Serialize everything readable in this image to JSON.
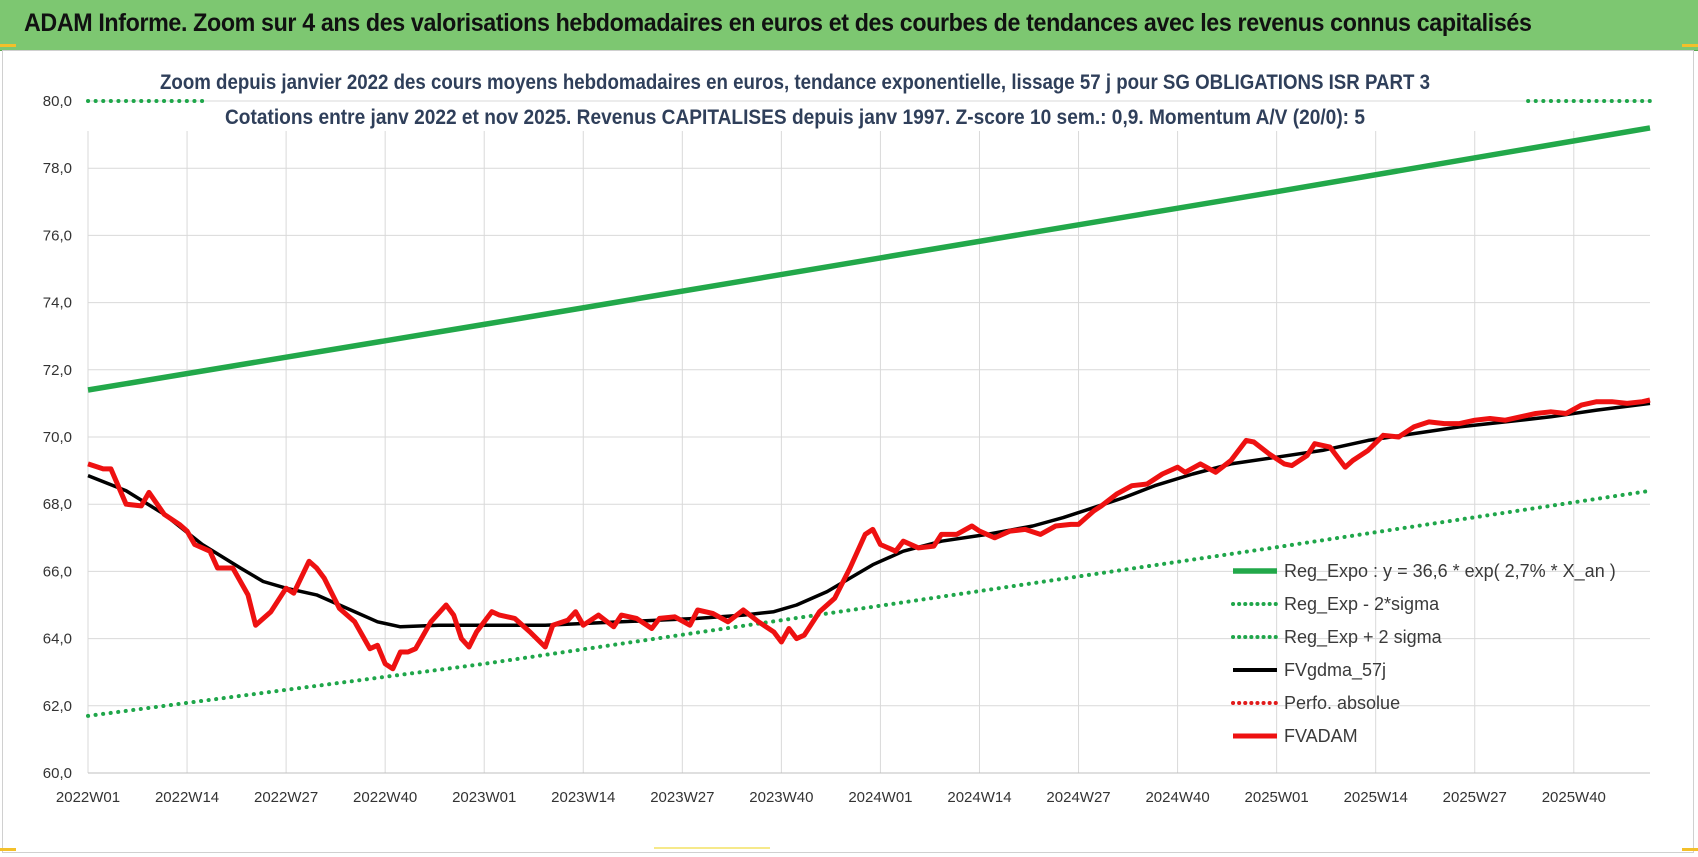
{
  "header": {
    "title": "ADAM Informe. Zoom sur 4 ans des valorisations hebdomadaires en euros et des courbes de tendances avec les revenus connus capitalisés"
  },
  "colors": {
    "trend": "#22a84a",
    "band": "#1fa64a",
    "smooth": "#000000",
    "perfo": "#e11a1a",
    "fvadam": "#ee1111",
    "grid": "#d9d9d9",
    "banner": "#7dc771"
  },
  "chart_data": {
    "type": "line",
    "title_lines": [
      "Zoom depuis janvier 2022 des cours moyens hebdomadaires en euros, tendance exponentielle, lissage 57 j pour SG OBLIGATIONS ISR PART 3",
      "Cotations entre janv 2022 et nov 2025. Revenus CAPITALISES depuis janv 1997. Z-score 10 sem.: 0,9. Momentum A/V (20/0): 5"
    ],
    "ylim": [
      60,
      80
    ],
    "yticks": [
      "60,0",
      "62,0",
      "64,0",
      "66,0",
      "68,0",
      "70,0",
      "72,0",
      "74,0",
      "76,0",
      "78,0",
      "80,0"
    ],
    "xlim": [
      0,
      205
    ],
    "xticks": [
      {
        "x": 0,
        "label": "2022W01"
      },
      {
        "x": 13,
        "label": "2022W14"
      },
      {
        "x": 26,
        "label": "2022W27"
      },
      {
        "x": 39,
        "label": "2022W40"
      },
      {
        "x": 52,
        "label": "2023W01"
      },
      {
        "x": 65,
        "label": "2023W14"
      },
      {
        "x": 78,
        "label": "2023W27"
      },
      {
        "x": 91,
        "label": "2023W40"
      },
      {
        "x": 104,
        "label": "2024W01"
      },
      {
        "x": 117,
        "label": "2024W14"
      },
      {
        "x": 130,
        "label": "2024W27"
      },
      {
        "x": 143,
        "label": "2024W40"
      },
      {
        "x": 156,
        "label": "2025W01"
      },
      {
        "x": 169,
        "label": "2025W14"
      },
      {
        "x": 182,
        "label": "2025W27"
      },
      {
        "x": 195,
        "label": "2025W40"
      }
    ],
    "legend_position": "lower-right",
    "grid": true,
    "series": [
      {
        "name": "Reg_Expo : y = 36,6 * exp( 2,7% *  X_an )",
        "style": "solid-thick",
        "color": "#22a84a",
        "points": [
          [
            0,
            71.4
          ],
          [
            52,
            73.35
          ],
          [
            104,
            75.33
          ],
          [
            156,
            77.3
          ],
          [
            205,
            79.2
          ]
        ]
      },
      {
        "name": "Reg_Exp - 2*sigma",
        "style": "dotted",
        "color": "#1fa64a",
        "points": [
          [
            0,
            61.7
          ],
          [
            52,
            63.25
          ],
          [
            104,
            64.98
          ],
          [
            156,
            66.72
          ],
          [
            205,
            68.4
          ]
        ]
      },
      {
        "name": "Reg_Exp + 2 sigma",
        "style": "dotted",
        "color": "#1fa64a",
        "points": [
          [
            0,
            80.0
          ],
          [
            15,
            80.0
          ]
        ]
      },
      {
        "name": "FVgdma_57j",
        "style": "solid",
        "color": "#000000",
        "points": [
          [
            0,
            68.85
          ],
          [
            5,
            68.4
          ],
          [
            10,
            67.7
          ],
          [
            15,
            66.8
          ],
          [
            20,
            66.1
          ],
          [
            23,
            65.7
          ],
          [
            26,
            65.5
          ],
          [
            30,
            65.3
          ],
          [
            34,
            64.9
          ],
          [
            38,
            64.5
          ],
          [
            41,
            64.35
          ],
          [
            46,
            64.4
          ],
          [
            52,
            64.4
          ],
          [
            60,
            64.4
          ],
          [
            70,
            64.5
          ],
          [
            80,
            64.6
          ],
          [
            86,
            64.7
          ],
          [
            90,
            64.8
          ],
          [
            93,
            65.0
          ],
          [
            97,
            65.4
          ],
          [
            100,
            65.8
          ],
          [
            103,
            66.2
          ],
          [
            107,
            66.6
          ],
          [
            112,
            66.9
          ],
          [
            118,
            67.1
          ],
          [
            124,
            67.35
          ],
          [
            128,
            67.6
          ],
          [
            132,
            67.9
          ],
          [
            136,
            68.2
          ],
          [
            140,
            68.55
          ],
          [
            145,
            68.9
          ],
          [
            150,
            69.2
          ],
          [
            156,
            69.4
          ],
          [
            162,
            69.6
          ],
          [
            168,
            69.9
          ],
          [
            174,
            70.1
          ],
          [
            180,
            70.3
          ],
          [
            186,
            70.45
          ],
          [
            192,
            70.6
          ],
          [
            198,
            70.8
          ],
          [
            205,
            71.0
          ]
        ]
      },
      {
        "name": "Perfo. absolue",
        "style": "dotted",
        "color": "#e11a1a",
        "points": []
      },
      {
        "name": "FVADAM",
        "style": "solid-thick",
        "color": "#ee1111",
        "points": [
          [
            0,
            69.2
          ],
          [
            2,
            69.05
          ],
          [
            3,
            69.05
          ],
          [
            5,
            68.0
          ],
          [
            7,
            67.95
          ],
          [
            8,
            68.35
          ],
          [
            10,
            67.7
          ],
          [
            12,
            67.4
          ],
          [
            13,
            67.2
          ],
          [
            14,
            66.8
          ],
          [
            16,
            66.6
          ],
          [
            17,
            66.1
          ],
          [
            19,
            66.1
          ],
          [
            21,
            65.3
          ],
          [
            22,
            64.4
          ],
          [
            24,
            64.8
          ],
          [
            26,
            65.5
          ],
          [
            27,
            65.35
          ],
          [
            29,
            66.3
          ],
          [
            30,
            66.1
          ],
          [
            31,
            65.8
          ],
          [
            33,
            64.9
          ],
          [
            35,
            64.5
          ],
          [
            37,
            63.7
          ],
          [
            38,
            63.8
          ],
          [
            39,
            63.25
          ],
          [
            40,
            63.1
          ],
          [
            41,
            63.6
          ],
          [
            42,
            63.6
          ],
          [
            43,
            63.7
          ],
          [
            45,
            64.5
          ],
          [
            47,
            65.0
          ],
          [
            48,
            64.7
          ],
          [
            49,
            64.0
          ],
          [
            50,
            63.75
          ],
          [
            51,
            64.2
          ],
          [
            53,
            64.8
          ],
          [
            54,
            64.7
          ],
          [
            56,
            64.6
          ],
          [
            58,
            64.2
          ],
          [
            60,
            63.75
          ],
          [
            61,
            64.4
          ],
          [
            63,
            64.55
          ],
          [
            64,
            64.8
          ],
          [
            65,
            64.4
          ],
          [
            67,
            64.7
          ],
          [
            69,
            64.35
          ],
          [
            70,
            64.7
          ],
          [
            72,
            64.6
          ],
          [
            74,
            64.3
          ],
          [
            75,
            64.6
          ],
          [
            77,
            64.65
          ],
          [
            79,
            64.4
          ],
          [
            80,
            64.85
          ],
          [
            82,
            64.75
          ],
          [
            84,
            64.5
          ],
          [
            86,
            64.85
          ],
          [
            88,
            64.5
          ],
          [
            90,
            64.2
          ],
          [
            91,
            63.9
          ],
          [
            92,
            64.3
          ],
          [
            93,
            64.0
          ],
          [
            94,
            64.1
          ],
          [
            96,
            64.8
          ],
          [
            98,
            65.2
          ],
          [
            100,
            66.1
          ],
          [
            102,
            67.1
          ],
          [
            103,
            67.25
          ],
          [
            104,
            66.8
          ],
          [
            106,
            66.6
          ],
          [
            107,
            66.9
          ],
          [
            109,
            66.7
          ],
          [
            111,
            66.75
          ],
          [
            112,
            67.1
          ],
          [
            114,
            67.1
          ],
          [
            116,
            67.35
          ],
          [
            117,
            67.2
          ],
          [
            119,
            67.0
          ],
          [
            121,
            67.2
          ],
          [
            123,
            67.25
          ],
          [
            125,
            67.1
          ],
          [
            127,
            67.35
          ],
          [
            129,
            67.4
          ],
          [
            130,
            67.4
          ],
          [
            132,
            67.8
          ],
          [
            133,
            67.95
          ],
          [
            135,
            68.3
          ],
          [
            137,
            68.55
          ],
          [
            139,
            68.6
          ],
          [
            141,
            68.9
          ],
          [
            143,
            69.1
          ],
          [
            144,
            68.95
          ],
          [
            146,
            69.2
          ],
          [
            148,
            68.95
          ],
          [
            150,
            69.3
          ],
          [
            152,
            69.9
          ],
          [
            153,
            69.85
          ],
          [
            155,
            69.5
          ],
          [
            157,
            69.2
          ],
          [
            158,
            69.15
          ],
          [
            160,
            69.45
          ],
          [
            161,
            69.8
          ],
          [
            163,
            69.7
          ],
          [
            165,
            69.1
          ],
          [
            166,
            69.3
          ],
          [
            168,
            69.6
          ],
          [
            170,
            70.05
          ],
          [
            172,
            70.0
          ],
          [
            174,
            70.3
          ],
          [
            176,
            70.45
          ],
          [
            178,
            70.4
          ],
          [
            180,
            70.4
          ],
          [
            182,
            70.5
          ],
          [
            184,
            70.55
          ],
          [
            186,
            70.5
          ],
          [
            188,
            70.6
          ],
          [
            190,
            70.7
          ],
          [
            192,
            70.75
          ],
          [
            194,
            70.7
          ],
          [
            196,
            70.95
          ],
          [
            198,
            71.05
          ],
          [
            200,
            71.05
          ],
          [
            202,
            71.0
          ],
          [
            204,
            71.05
          ],
          [
            205,
            71.1
          ]
        ]
      }
    ]
  }
}
